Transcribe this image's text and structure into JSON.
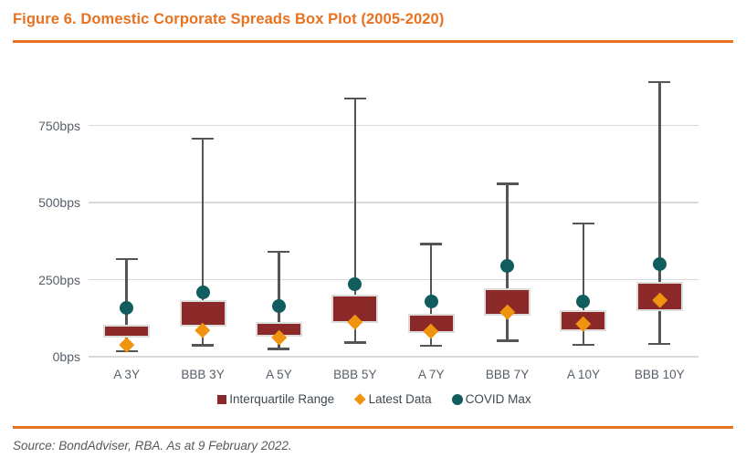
{
  "title": "Figure 6. Domestic Corporate Spreads Box Plot (2005-2020)",
  "source_note": "Source: BondAdviser, RBA. As at 9 February 2022.",
  "colors": {
    "accent_orange": "#E7721F",
    "box_fill": "#8B2828",
    "box_border": "#DFDCDC",
    "latest_diamond": "#F0930F",
    "covid_circle": "#115C5C",
    "gridline": "#D9D9D9",
    "whisker": "#555555",
    "axis_text": "#57606A",
    "legend_text": "#3E4953"
  },
  "chart_data": {
    "type": "box",
    "title": "Figure 6. Domestic Corporate Spreads Box Plot (2005-2020)",
    "unit": "bps",
    "ylim": [
      0,
      950
    ],
    "grid": true,
    "legend_position": "bottom",
    "yticks": [
      {
        "value": 0,
        "label": "0bps"
      },
      {
        "value": 250,
        "label": "250bps"
      },
      {
        "value": 500,
        "label": "500bps"
      },
      {
        "value": 750,
        "label": "750bps"
      }
    ],
    "legend": [
      {
        "label": "Interquartile Range",
        "symbol": "square"
      },
      {
        "label": "Latest Data",
        "symbol": "diamond"
      },
      {
        "label": "COVID Max",
        "symbol": "circle"
      }
    ],
    "boxes": [
      {
        "category": "A 3Y",
        "whisker_low": 17,
        "q1": 63,
        "q3": 105,
        "whisker_high": 317,
        "latest_data": 39,
        "covid_max": 157
      },
      {
        "category": "BBB 3Y",
        "whisker_low": 36,
        "q1": 99,
        "q3": 184,
        "whisker_high": 708,
        "latest_data": 86,
        "covid_max": 210
      },
      {
        "category": "A 5Y",
        "whisker_low": 25,
        "q1": 64,
        "q3": 113,
        "whisker_high": 341,
        "latest_data": 64,
        "covid_max": 165
      },
      {
        "category": "BBB 5Y",
        "whisker_low": 45,
        "q1": 109,
        "q3": 201,
        "whisker_high": 838,
        "latest_data": 112,
        "covid_max": 236
      },
      {
        "category": "A 7Y",
        "whisker_low": 35,
        "q1": 77,
        "q3": 138,
        "whisker_high": 366,
        "latest_data": 84,
        "covid_max": 180
      },
      {
        "category": "BBB 7Y",
        "whisker_low": 51,
        "q1": 133,
        "q3": 223,
        "whisker_high": 561,
        "latest_data": 147,
        "covid_max": 293
      },
      {
        "category": "A 10Y",
        "whisker_low": 38,
        "q1": 84,
        "q3": 152,
        "whisker_high": 433,
        "latest_data": 107,
        "covid_max": 179
      },
      {
        "category": "BBB 10Y",
        "whisker_low": 40,
        "q1": 147,
        "q3": 243,
        "whisker_high": 892,
        "latest_data": 184,
        "covid_max": 300
      }
    ]
  }
}
